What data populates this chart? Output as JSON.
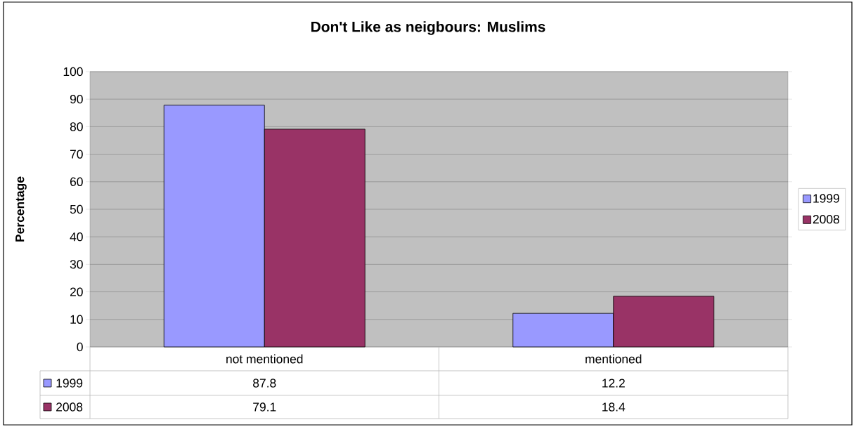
{
  "chart_data": {
    "type": "bar",
    "title": "Don't Like as neigbours: Muslims",
    "ylabel": "Percentage",
    "categories": [
      "not mentioned",
      "mentioned"
    ],
    "series": [
      {
        "name": "1999",
        "color": "#9999ff",
        "values": [
          87.8,
          12.2
        ]
      },
      {
        "name": "2008",
        "color": "#993366",
        "values": [
          79.1,
          18.4
        ]
      }
    ],
    "ylim": [
      0,
      100
    ],
    "yticks": [
      0,
      10,
      20,
      30,
      40,
      50,
      60,
      70,
      80,
      90,
      100
    ],
    "grid": "y",
    "legend": "right",
    "data_labels": true
  }
}
